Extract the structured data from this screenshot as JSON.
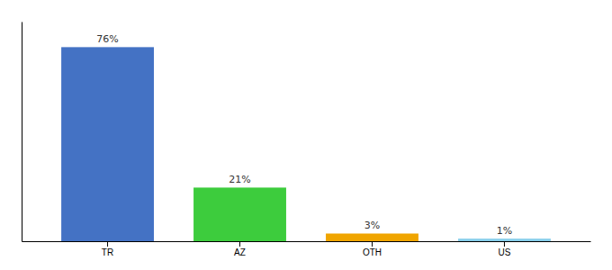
{
  "chart_data": {
    "type": "bar",
    "categories": [
      "TR",
      "AZ",
      "OTH",
      "US"
    ],
    "values": [
      76,
      21,
      3,
      1
    ],
    "value_labels": [
      "76%",
      "21%",
      "3%",
      "1%"
    ],
    "colors": [
      "#4472c4",
      "#3dcc3d",
      "#f0a500",
      "#87ceeb"
    ],
    "ylim": [
      0,
      86
    ],
    "data_labels": true,
    "tick_labels": "x"
  }
}
